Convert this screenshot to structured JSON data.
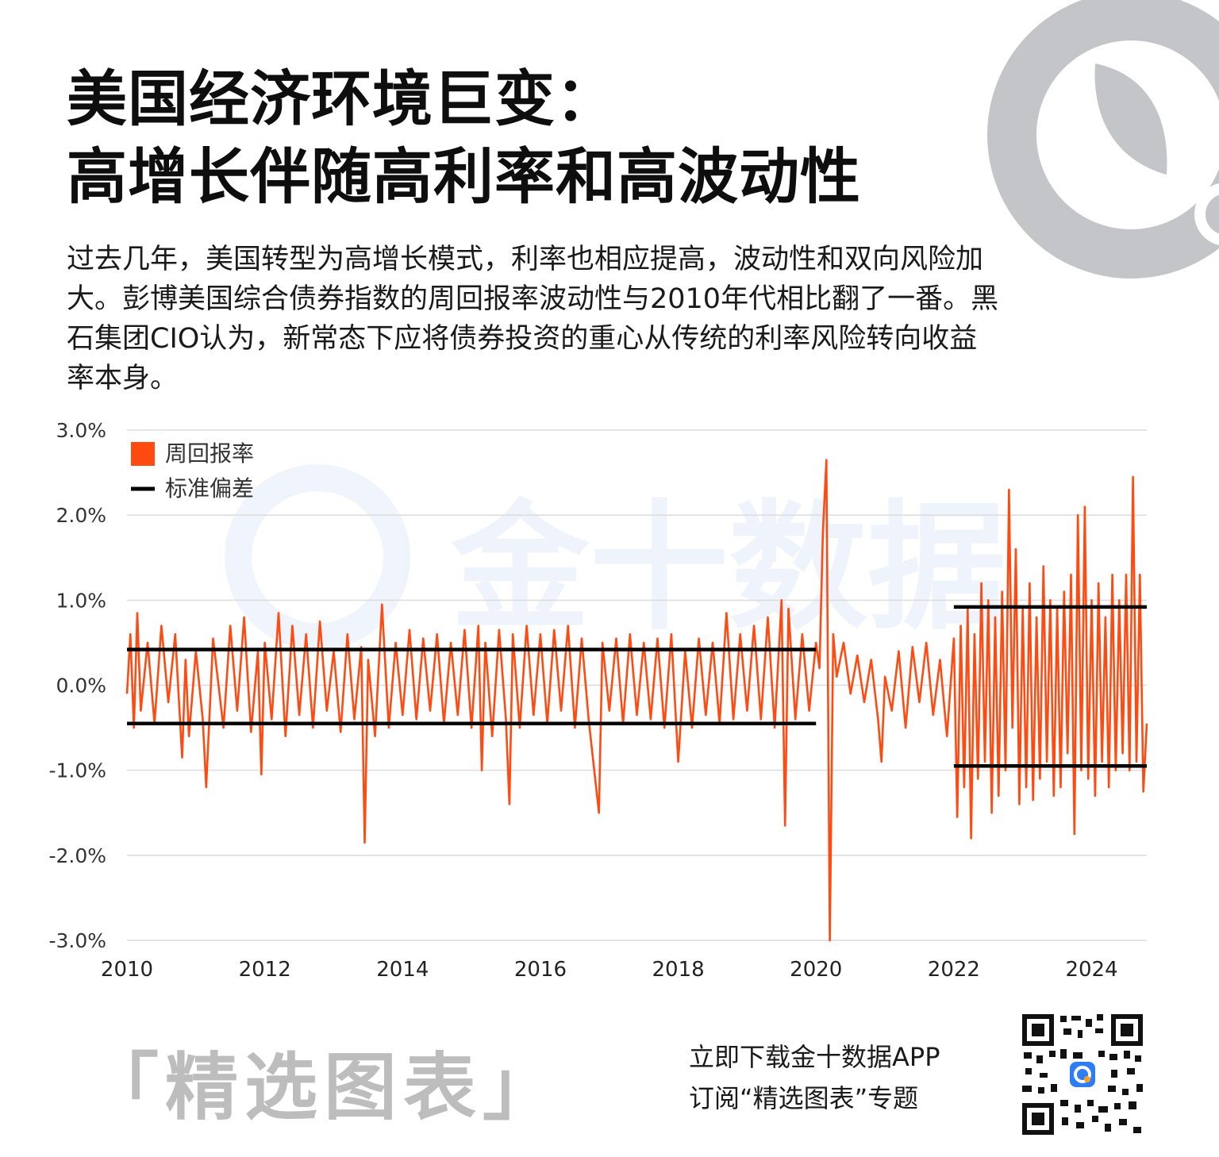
{
  "header": {
    "title_line1": "美国经济环境巨变：",
    "title_line2": "高增长伴随高利率和高波动性"
  },
  "intro": "过去几年，美国转型为高增长模式，利率也相应提高，波动性和双向风险加大。彭博美国综合债券指数的周回报率波动性与2010年代相比翻了一番。黑石集团CIO认为，新常态下应将债券投资的重心从传统的利率风险转向收益率本身。",
  "watermark_text": "金十数据",
  "footer": {
    "tag": "「精选图表」",
    "line1": "立即下载金十数据APP",
    "line2": "订阅“精选图表”专题"
  },
  "colors": {
    "series": "#ff4a12",
    "std_lines": "#000000",
    "logo_gray": "#c4c5c8",
    "logo_orange": "#f7a12a"
  },
  "chart_data": {
    "type": "line",
    "title": "",
    "xlabel": "",
    "ylabel": "",
    "x_ticks": [
      "2010",
      "2012",
      "2014",
      "2016",
      "2018",
      "2020",
      "2022",
      "2024"
    ],
    "y_ticks": [
      "3.0%",
      "2.0%",
      "1.0%",
      "0.0%",
      "-1.0%",
      "-2.0%",
      "-3.0%"
    ],
    "xlim": [
      2010,
      2024.8
    ],
    "ylim": [
      -3.0,
      3.0
    ],
    "grid": "horizontal",
    "legend_position": "top-left",
    "legend": [
      {
        "label": "周回报率",
        "kind": "square"
      },
      {
        "label": "标准偏差",
        "kind": "line"
      }
    ],
    "std_bands": [
      {
        "x_start": 2010,
        "x_end": 2020.0,
        "upper": 0.42,
        "lower": -0.45
      },
      {
        "x_start": 2022.0,
        "x_end": 2024.8,
        "upper": 0.92,
        "lower": -0.95
      }
    ],
    "series": [
      {
        "name": "周回报率",
        "points": [
          [
            2010.0,
            -0.1
          ],
          [
            2010.05,
            0.6
          ],
          [
            2010.1,
            -0.5
          ],
          [
            2010.15,
            0.85
          ],
          [
            2010.2,
            -0.3
          ],
          [
            2010.3,
            0.5
          ],
          [
            2010.4,
            -0.45
          ],
          [
            2010.5,
            0.7
          ],
          [
            2010.6,
            -0.2
          ],
          [
            2010.7,
            0.6
          ],
          [
            2010.8,
            -0.85
          ],
          [
            2010.85,
            0.3
          ],
          [
            2010.9,
            -0.6
          ],
          [
            2011.0,
            0.4
          ],
          [
            2011.1,
            -0.4
          ],
          [
            2011.15,
            -1.2
          ],
          [
            2011.25,
            0.55
          ],
          [
            2011.4,
            -0.5
          ],
          [
            2011.5,
            0.7
          ],
          [
            2011.6,
            -0.3
          ],
          [
            2011.7,
            0.8
          ],
          [
            2011.8,
            -0.55
          ],
          [
            2011.9,
            0.4
          ],
          [
            2011.95,
            -1.05
          ],
          [
            2012.0,
            0.5
          ],
          [
            2012.1,
            -0.4
          ],
          [
            2012.2,
            0.85
          ],
          [
            2012.3,
            -0.6
          ],
          [
            2012.4,
            0.7
          ],
          [
            2012.5,
            -0.35
          ],
          [
            2012.6,
            0.6
          ],
          [
            2012.7,
            -0.5
          ],
          [
            2012.8,
            0.75
          ],
          [
            2012.9,
            -0.3
          ],
          [
            2013.0,
            0.4
          ],
          [
            2013.1,
            -0.55
          ],
          [
            2013.2,
            0.6
          ],
          [
            2013.3,
            -0.4
          ],
          [
            2013.4,
            0.45
          ],
          [
            2013.45,
            -1.85
          ],
          [
            2013.5,
            0.3
          ],
          [
            2013.6,
            -0.6
          ],
          [
            2013.7,
            0.95
          ],
          [
            2013.8,
            -0.5
          ],
          [
            2013.9,
            0.5
          ],
          [
            2014.0,
            -0.35
          ],
          [
            2014.1,
            0.65
          ],
          [
            2014.2,
            -0.4
          ],
          [
            2014.3,
            0.55
          ],
          [
            2014.4,
            -0.3
          ],
          [
            2014.5,
            0.6
          ],
          [
            2014.6,
            -0.45
          ],
          [
            2014.7,
            0.5
          ],
          [
            2014.8,
            -0.35
          ],
          [
            2014.9,
            0.65
          ],
          [
            2015.0,
            -0.5
          ],
          [
            2015.1,
            0.7
          ],
          [
            2015.15,
            -1.0
          ],
          [
            2015.2,
            0.5
          ],
          [
            2015.3,
            -0.6
          ],
          [
            2015.4,
            0.65
          ],
          [
            2015.5,
            -0.4
          ],
          [
            2015.55,
            -1.4
          ],
          [
            2015.6,
            0.6
          ],
          [
            2015.7,
            -0.5
          ],
          [
            2015.8,
            0.7
          ],
          [
            2015.9,
            -0.35
          ],
          [
            2016.0,
            0.6
          ],
          [
            2016.1,
            -0.45
          ],
          [
            2016.2,
            0.65
          ],
          [
            2016.3,
            -0.3
          ],
          [
            2016.4,
            0.7
          ],
          [
            2016.5,
            -0.5
          ],
          [
            2016.6,
            0.55
          ],
          [
            2016.7,
            -0.4
          ],
          [
            2016.85,
            -1.5
          ],
          [
            2016.9,
            0.5
          ],
          [
            2017.0,
            -0.3
          ],
          [
            2017.1,
            0.55
          ],
          [
            2017.2,
            -0.45
          ],
          [
            2017.3,
            0.6
          ],
          [
            2017.4,
            -0.35
          ],
          [
            2017.5,
            0.5
          ],
          [
            2017.6,
            -0.4
          ],
          [
            2017.7,
            0.55
          ],
          [
            2017.8,
            -0.5
          ],
          [
            2017.9,
            0.6
          ],
          [
            2018.0,
            -0.9
          ],
          [
            2018.1,
            0.4
          ],
          [
            2018.2,
            -0.5
          ],
          [
            2018.3,
            0.55
          ],
          [
            2018.4,
            -0.35
          ],
          [
            2018.5,
            0.5
          ],
          [
            2018.6,
            -0.45
          ],
          [
            2018.7,
            0.85
          ],
          [
            2018.8,
            -0.4
          ],
          [
            2018.9,
            0.6
          ],
          [
            2019.0,
            -0.3
          ],
          [
            2019.1,
            0.7
          ],
          [
            2019.2,
            -0.4
          ],
          [
            2019.3,
            0.8
          ],
          [
            2019.4,
            -0.5
          ],
          [
            2019.5,
            1.0
          ],
          [
            2019.55,
            -1.65
          ],
          [
            2019.6,
            0.9
          ],
          [
            2019.7,
            -0.4
          ],
          [
            2019.8,
            0.6
          ],
          [
            2019.9,
            -0.3
          ],
          [
            2020.0,
            0.5
          ],
          [
            2020.05,
            0.2
          ],
          [
            2020.1,
            1.8
          ],
          [
            2020.15,
            2.65
          ],
          [
            2020.2,
            -3.0
          ],
          [
            2020.25,
            0.6
          ],
          [
            2020.3,
            0.1
          ],
          [
            2020.4,
            0.5
          ],
          [
            2020.5,
            -0.1
          ],
          [
            2020.6,
            0.35
          ],
          [
            2020.7,
            -0.2
          ],
          [
            2020.8,
            0.3
          ],
          [
            2020.9,
            -0.4
          ],
          [
            2020.95,
            -0.9
          ],
          [
            2021.0,
            0.1
          ],
          [
            2021.1,
            -0.3
          ],
          [
            2021.2,
            0.4
          ],
          [
            2021.3,
            -0.5
          ],
          [
            2021.4,
            0.45
          ],
          [
            2021.5,
            -0.2
          ],
          [
            2021.6,
            0.5
          ],
          [
            2021.7,
            -0.35
          ],
          [
            2021.8,
            0.3
          ],
          [
            2021.9,
            -0.6
          ],
          [
            2022.0,
            0.55
          ],
          [
            2022.05,
            -1.55
          ],
          [
            2022.1,
            0.7
          ],
          [
            2022.15,
            -1.2
          ],
          [
            2022.2,
            0.9
          ],
          [
            2022.25,
            -1.8
          ],
          [
            2022.3,
            0.6
          ],
          [
            2022.35,
            -1.1
          ],
          [
            2022.4,
            1.2
          ],
          [
            2022.45,
            -0.9
          ],
          [
            2022.5,
            1.0
          ],
          [
            2022.55,
            -1.5
          ],
          [
            2022.6,
            0.8
          ],
          [
            2022.65,
            -1.3
          ],
          [
            2022.7,
            1.1
          ],
          [
            2022.75,
            -1.0
          ],
          [
            2022.8,
            2.3
          ],
          [
            2022.85,
            -0.5
          ],
          [
            2022.9,
            1.6
          ],
          [
            2022.95,
            -1.4
          ],
          [
            2023.0,
            0.9
          ],
          [
            2023.05,
            -1.2
          ],
          [
            2023.1,
            1.2
          ],
          [
            2023.15,
            -1.35
          ],
          [
            2023.2,
            0.8
          ],
          [
            2023.25,
            -1.1
          ],
          [
            2023.3,
            1.4
          ],
          [
            2023.35,
            -0.9
          ],
          [
            2023.4,
            1.0
          ],
          [
            2023.45,
            -1.3
          ],
          [
            2023.5,
            0.9
          ],
          [
            2023.55,
            -1.2
          ],
          [
            2023.6,
            1.1
          ],
          [
            2023.65,
            -0.8
          ],
          [
            2023.7,
            1.3
          ],
          [
            2023.75,
            -1.75
          ],
          [
            2023.8,
            2.0
          ],
          [
            2023.85,
            -1.0
          ],
          [
            2023.9,
            2.1
          ],
          [
            2023.95,
            -1.1
          ],
          [
            2024.0,
            1.0
          ],
          [
            2024.05,
            -1.3
          ],
          [
            2024.1,
            1.2
          ],
          [
            2024.15,
            -0.9
          ],
          [
            2024.2,
            0.8
          ],
          [
            2024.25,
            -1.2
          ],
          [
            2024.3,
            1.3
          ],
          [
            2024.35,
            -1.0
          ],
          [
            2024.4,
            1.0
          ],
          [
            2024.45,
            -0.8
          ],
          [
            2024.5,
            1.3
          ],
          [
            2024.55,
            -1.0
          ],
          [
            2024.6,
            2.45
          ],
          [
            2024.65,
            -0.9
          ],
          [
            2024.7,
            1.3
          ],
          [
            2024.75,
            -1.25
          ],
          [
            2024.8,
            -0.45
          ]
        ]
      }
    ]
  }
}
